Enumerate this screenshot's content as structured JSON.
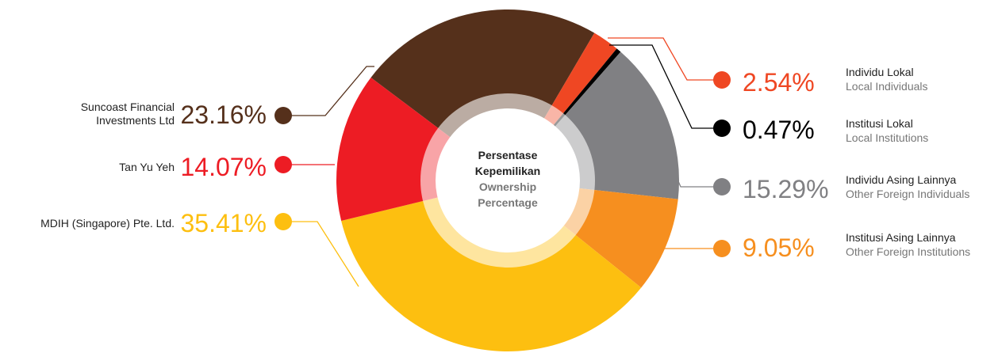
{
  "center_label": {
    "line1": "Persentase",
    "line2": "Kepemilikan",
    "line3": "Ownership",
    "line4": "Percentage"
  },
  "chart_data": {
    "type": "pie",
    "variant": "donut",
    "slices": [
      {
        "label": "Suncoast Financial Investments Ltd",
        "value": 23.16,
        "display": "23.16%",
        "color": "#55301b"
      },
      {
        "label_id": "Individu Lokal",
        "label_en": "Local Individuals",
        "value": 2.54,
        "display": "2.54%",
        "color": "#ef4723"
      },
      {
        "label_id": "Institusi Lokal",
        "label_en": "Local Institutions",
        "value": 0.47,
        "display": "0.47%",
        "color": "#000000"
      },
      {
        "label_id": "Individu Asing Lainnya",
        "label_en": "Other Foreign Individuals",
        "value": 15.29,
        "display": "15.29%",
        "color": "#808083"
      },
      {
        "label_id": "Institusi Asing Lainnya",
        "label_en": "Other Foreign Institutions",
        "value": 9.05,
        "display": "9.05%",
        "color": "#f68f1f"
      },
      {
        "label": "MDIH (Singapore) Pte. Ltd.",
        "value": 35.41,
        "display": "35.41%",
        "color": "#fdbf10"
      },
      {
        "label": "Tan Yu Yeh",
        "value": 14.07,
        "display": "14.07%",
        "color": "#ed1c24"
      }
    ]
  },
  "labels": {
    "suncoast_line1": "Suncoast Financial",
    "suncoast_line2": "Investments Ltd",
    "tan": "Tan Yu Yeh",
    "mdih": "MDIH (Singapore) Pte. Ltd."
  }
}
